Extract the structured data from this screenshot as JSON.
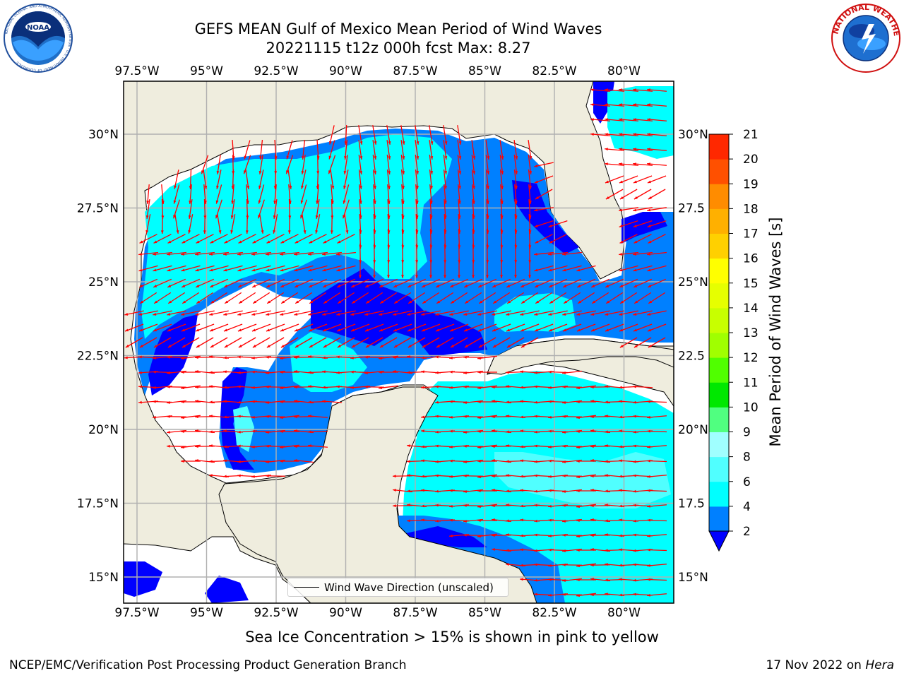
{
  "header": {
    "title": "GEFS MEAN Gulf of Mexico Mean Period of Wind Waves",
    "subtitle": "20221115 t12z 000h fcst   Max: 8.27"
  },
  "logos": {
    "noaa": {
      "label": "NOAA",
      "ring_text": "NATIONAL OCEANIC AND ATMOSPHERIC ADMINISTRATION · U.S. DEPARTMENT OF COMMERCE"
    },
    "nws": {
      "ring_text": "NATIONAL WEATHER SERVICE"
    }
  },
  "map": {
    "lon_ticks": [
      "97.5°W",
      "95°W",
      "92.5°W",
      "90°W",
      "87.5°W",
      "85°W",
      "82.5°W",
      "80°W"
    ],
    "lon_values": [
      -97.5,
      -95,
      -92.5,
      -90,
      -87.5,
      -85,
      -82.5,
      -80
    ],
    "lat_ticks_left": [
      "30°N",
      "27.5°N",
      "25°N",
      "22.5°N",
      "20°N",
      "17.5°N",
      "15°N"
    ],
    "lat_ticks_right": [
      "30°N",
      "27.5",
      "25°N",
      "22.5",
      "20°N",
      "17.5",
      "15°N"
    ],
    "lat_values": [
      30,
      27.5,
      25,
      22.5,
      20,
      17.5,
      15
    ],
    "legend_label": "Wind Wave Direction (unscaled)",
    "colors": {
      "land": "#efedde",
      "ocean_none": "#ffffff",
      "grid": "#b0b0b0",
      "arrow": "#ff0000"
    }
  },
  "colorbar": {
    "label": "Mean Period of Wind Waves [s]",
    "ticks": [
      "2",
      "4",
      "6",
      "8",
      "9",
      "10",
      "11",
      "12",
      "13",
      "14",
      "15",
      "16",
      "17",
      "18",
      "19",
      "20",
      "21"
    ],
    "levels": [
      {
        "from": 2,
        "to": 4,
        "color": "#0080ff"
      },
      {
        "from": 4,
        "to": 6,
        "color": "#00ffff"
      },
      {
        "from": 6,
        "to": 8,
        "color": "#50ffff"
      },
      {
        "from": 8,
        "to": 9,
        "color": "#a0ffff"
      },
      {
        "from": 9,
        "to": 10,
        "color": "#50ff80"
      },
      {
        "from": 10,
        "to": 11,
        "color": "#00e800"
      },
      {
        "from": 11,
        "to": 12,
        "color": "#50ff00"
      },
      {
        "from": 12,
        "to": 13,
        "color": "#a0ff00"
      },
      {
        "from": 13,
        "to": 14,
        "color": "#c8ff00"
      },
      {
        "from": 14,
        "to": 15,
        "color": "#e6ff00"
      },
      {
        "from": 15,
        "to": 16,
        "color": "#ffff00"
      },
      {
        "from": 16,
        "to": 17,
        "color": "#ffd000"
      },
      {
        "from": 17,
        "to": 18,
        "color": "#ffb000"
      },
      {
        "from": 18,
        "to": 19,
        "color": "#ff8c00"
      },
      {
        "from": 19,
        "to": 20,
        "color": "#ff5000"
      },
      {
        "from": 20,
        "to": 21,
        "color": "#ff2800"
      },
      {
        "from": 21,
        "to": 22,
        "color": "#ff0000"
      }
    ],
    "under_color": "#0000ff"
  },
  "footer": {
    "note": "Sea Ice Concentration > 15% is shown in pink to yellow",
    "left": "NCEP/EMC/Verification Post Processing Product Generation Branch",
    "right_date": "17 Nov 2022 on ",
    "right_host": "Hera"
  }
}
